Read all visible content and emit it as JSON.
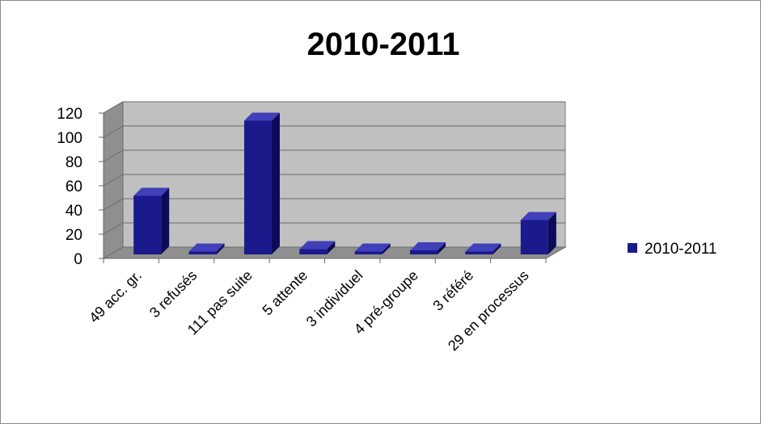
{
  "chart_data": {
    "type": "bar",
    "title": "2010-2011",
    "categories": [
      "49 acc. gr.",
      "3 refusés",
      "111 pas suite",
      "5 attente",
      "3 individuel",
      "4 pré-groupe",
      "3 référé",
      "29 en processus"
    ],
    "series": [
      {
        "name": "2010-2011",
        "values": [
          49,
          3,
          111,
          5,
          3,
          4,
          3,
          29
        ]
      }
    ],
    "yticks": [
      "0",
      "20",
      "40",
      "60",
      "80",
      "100",
      "120"
    ],
    "ylim": [
      0,
      120
    ],
    "grid": true,
    "legend": "right",
    "colors": {
      "bar": "#1a1a8c",
      "bar_top": "#4040b8",
      "bar_side": "#0b0b5a",
      "wall": "#c0c0c0",
      "floor": "#8f8f8f"
    }
  }
}
